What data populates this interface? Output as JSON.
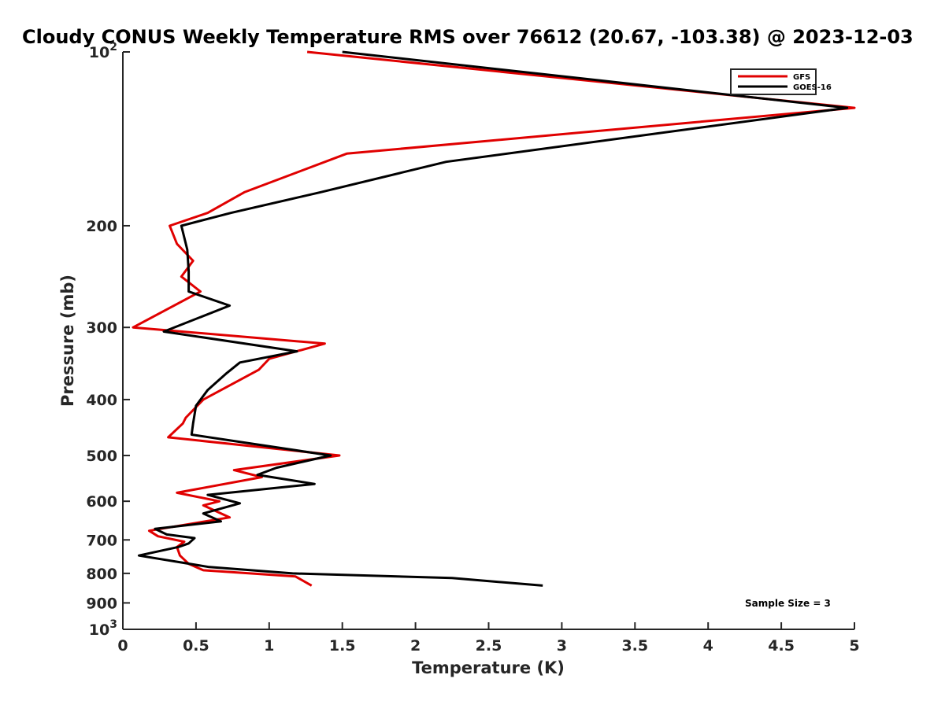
{
  "chart_data": {
    "type": "line",
    "title": "Cloudy CONUS Weekly Temperature RMS over 76612 (20.67, -103.38) @ 2023-12-03",
    "xlabel": "Temperature (K)",
    "ylabel": "Pressure (mb)",
    "xlim": [
      0,
      5
    ],
    "ylim": [
      100,
      1000
    ],
    "yscale": "log",
    "y_reversed": true,
    "grid": false,
    "legend_position": "top-right",
    "x_ticks": [
      0,
      0.5,
      1,
      1.5,
      2,
      2.5,
      3,
      3.5,
      4,
      4.5,
      5
    ],
    "x_tick_labels": [
      "0",
      "0.5",
      "1",
      "1.5",
      "2",
      "2.5",
      "3",
      "3.5",
      "4",
      "4.5",
      "5"
    ],
    "y_ticks": [
      {
        "value": 100,
        "base": "10",
        "exp": "2"
      },
      {
        "value": 200,
        "label": "200"
      },
      {
        "value": 300,
        "label": "300"
      },
      {
        "value": 400,
        "label": "400"
      },
      {
        "value": 500,
        "label": "500"
      },
      {
        "value": 600,
        "label": "600"
      },
      {
        "value": 700,
        "label": "700"
      },
      {
        "value": 800,
        "label": "800"
      },
      {
        "value": 900,
        "label": "900"
      },
      {
        "value": 1000,
        "base": "10",
        "exp": "3"
      }
    ],
    "annotation": "Sample Size = 3",
    "series": [
      {
        "name": "GFS",
        "color": "#e00000",
        "points": [
          [
            1.26,
            100
          ],
          [
            5.0,
            125
          ],
          [
            1.53,
            150
          ],
          [
            0.83,
            175
          ],
          [
            0.58,
            190
          ],
          [
            0.32,
            200
          ],
          [
            0.37,
            215
          ],
          [
            0.48,
            230
          ],
          [
            0.4,
            245
          ],
          [
            0.53,
            260
          ],
          [
            0.07,
            300
          ],
          [
            1.38,
            320
          ],
          [
            1.0,
            340
          ],
          [
            0.93,
            355
          ],
          [
            0.55,
            400
          ],
          [
            0.43,
            430
          ],
          [
            0.41,
            440
          ],
          [
            0.31,
            465
          ],
          [
            1.48,
            500
          ],
          [
            0.76,
            530
          ],
          [
            0.95,
            545
          ],
          [
            0.37,
            580
          ],
          [
            0.66,
            600
          ],
          [
            0.55,
            610
          ],
          [
            0.73,
            640
          ],
          [
            0.18,
            675
          ],
          [
            0.24,
            690
          ],
          [
            0.42,
            705
          ],
          [
            0.37,
            720
          ],
          [
            0.39,
            745
          ],
          [
            0.45,
            770
          ],
          [
            0.55,
            790
          ],
          [
            1.18,
            810
          ],
          [
            1.29,
            840
          ]
        ]
      },
      {
        "name": "GOES-16",
        "color": "#000000",
        "points": [
          [
            1.5,
            100
          ],
          [
            4.95,
            125
          ],
          [
            2.21,
            155
          ],
          [
            1.35,
            175
          ],
          [
            0.74,
            190
          ],
          [
            0.4,
            200
          ],
          [
            0.44,
            220
          ],
          [
            0.45,
            240
          ],
          [
            0.45,
            260
          ],
          [
            0.73,
            275
          ],
          [
            0.28,
            305
          ],
          [
            1.19,
            330
          ],
          [
            0.8,
            345
          ],
          [
            0.71,
            360
          ],
          [
            0.58,
            385
          ],
          [
            0.5,
            410
          ],
          [
            0.48,
            440
          ],
          [
            0.47,
            460
          ],
          [
            1.42,
            500
          ],
          [
            1.05,
            525
          ],
          [
            0.92,
            540
          ],
          [
            1.31,
            560
          ],
          [
            0.58,
            585
          ],
          [
            0.8,
            605
          ],
          [
            0.55,
            630
          ],
          [
            0.67,
            650
          ],
          [
            0.22,
            670
          ],
          [
            0.3,
            685
          ],
          [
            0.49,
            695
          ],
          [
            0.45,
            710
          ],
          [
            0.38,
            720
          ],
          [
            0.11,
            745
          ],
          [
            0.59,
            780
          ],
          [
            1.16,
            800
          ],
          [
            2.25,
            815
          ],
          [
            2.87,
            840
          ]
        ]
      }
    ]
  }
}
